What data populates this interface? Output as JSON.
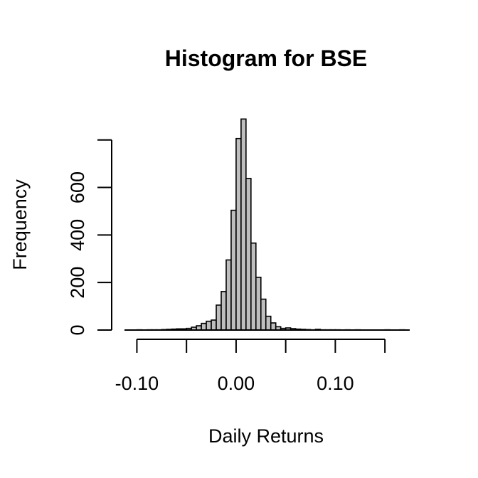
{
  "chart_data": {
    "type": "bar",
    "title": "Histogram for BSE",
    "xlabel": "Daily Returns",
    "ylabel": "Frequency",
    "xlim": [
      -0.1125,
      0.175
    ],
    "ylim": [
      0,
      880
    ],
    "x_ticks": [
      -0.1,
      -0.05,
      0.0,
      0.05,
      0.1,
      0.15
    ],
    "x_tick_labels": [
      "-0.10",
      "",
      "0.00",
      "",
      "0.10",
      ""
    ],
    "y_ticks": [
      0,
      200,
      400,
      600,
      800
    ],
    "y_tick_labels": [
      "0",
      "200",
      "400",
      "600",
      ""
    ],
    "bin_width": 0.005,
    "bins": [
      {
        "x0": -0.1,
        "count": 1
      },
      {
        "x0": -0.095,
        "count": 0
      },
      {
        "x0": -0.09,
        "count": 1
      },
      {
        "x0": -0.085,
        "count": 1
      },
      {
        "x0": -0.08,
        "count": 1
      },
      {
        "x0": -0.075,
        "count": 2
      },
      {
        "x0": -0.07,
        "count": 3
      },
      {
        "x0": -0.065,
        "count": 4
      },
      {
        "x0": -0.06,
        "count": 5
      },
      {
        "x0": -0.055,
        "count": 5
      },
      {
        "x0": -0.05,
        "count": 7
      },
      {
        "x0": -0.045,
        "count": 12
      },
      {
        "x0": -0.04,
        "count": 18
      },
      {
        "x0": -0.035,
        "count": 28
      },
      {
        "x0": -0.03,
        "count": 37
      },
      {
        "x0": -0.025,
        "count": 42
      },
      {
        "x0": -0.02,
        "count": 105
      },
      {
        "x0": -0.015,
        "count": 162
      },
      {
        "x0": -0.01,
        "count": 295
      },
      {
        "x0": -0.005,
        "count": 504
      },
      {
        "x0": 0.0,
        "count": 806
      },
      {
        "x0": 0.005,
        "count": 888
      },
      {
        "x0": 0.01,
        "count": 638
      },
      {
        "x0": 0.015,
        "count": 366
      },
      {
        "x0": 0.02,
        "count": 222
      },
      {
        "x0": 0.025,
        "count": 130
      },
      {
        "x0": 0.03,
        "count": 58
      },
      {
        "x0": 0.035,
        "count": 30
      },
      {
        "x0": 0.04,
        "count": 14
      },
      {
        "x0": 0.045,
        "count": 7
      },
      {
        "x0": 0.05,
        "count": 9
      },
      {
        "x0": 0.055,
        "count": 6
      },
      {
        "x0": 0.06,
        "count": 4
      },
      {
        "x0": 0.065,
        "count": 3
      },
      {
        "x0": 0.07,
        "count": 2
      },
      {
        "x0": 0.075,
        "count": 1
      },
      {
        "x0": 0.08,
        "count": 3
      },
      {
        "x0": 0.085,
        "count": 1
      },
      {
        "x0": 0.09,
        "count": 1
      },
      {
        "x0": 0.095,
        "count": 1
      },
      {
        "x0": 0.1,
        "count": 1
      },
      {
        "x0": 0.105,
        "count": 0
      },
      {
        "x0": 0.11,
        "count": 1
      },
      {
        "x0": 0.115,
        "count": 0
      },
      {
        "x0": 0.12,
        "count": 1
      },
      {
        "x0": 0.125,
        "count": 0
      },
      {
        "x0": 0.13,
        "count": 0
      },
      {
        "x0": 0.135,
        "count": 0
      },
      {
        "x0": 0.14,
        "count": 0
      },
      {
        "x0": 0.145,
        "count": 0
      },
      {
        "x0": 0.15,
        "count": 1
      },
      {
        "x0": 0.155,
        "count": 0
      },
      {
        "x0": 0.16,
        "count": 0
      },
      {
        "x0": 0.165,
        "count": 1
      }
    ],
    "colors": {
      "bar_fill": "#bebebe",
      "bar_stroke": "#000000"
    },
    "grid": false,
    "legend": "none"
  }
}
